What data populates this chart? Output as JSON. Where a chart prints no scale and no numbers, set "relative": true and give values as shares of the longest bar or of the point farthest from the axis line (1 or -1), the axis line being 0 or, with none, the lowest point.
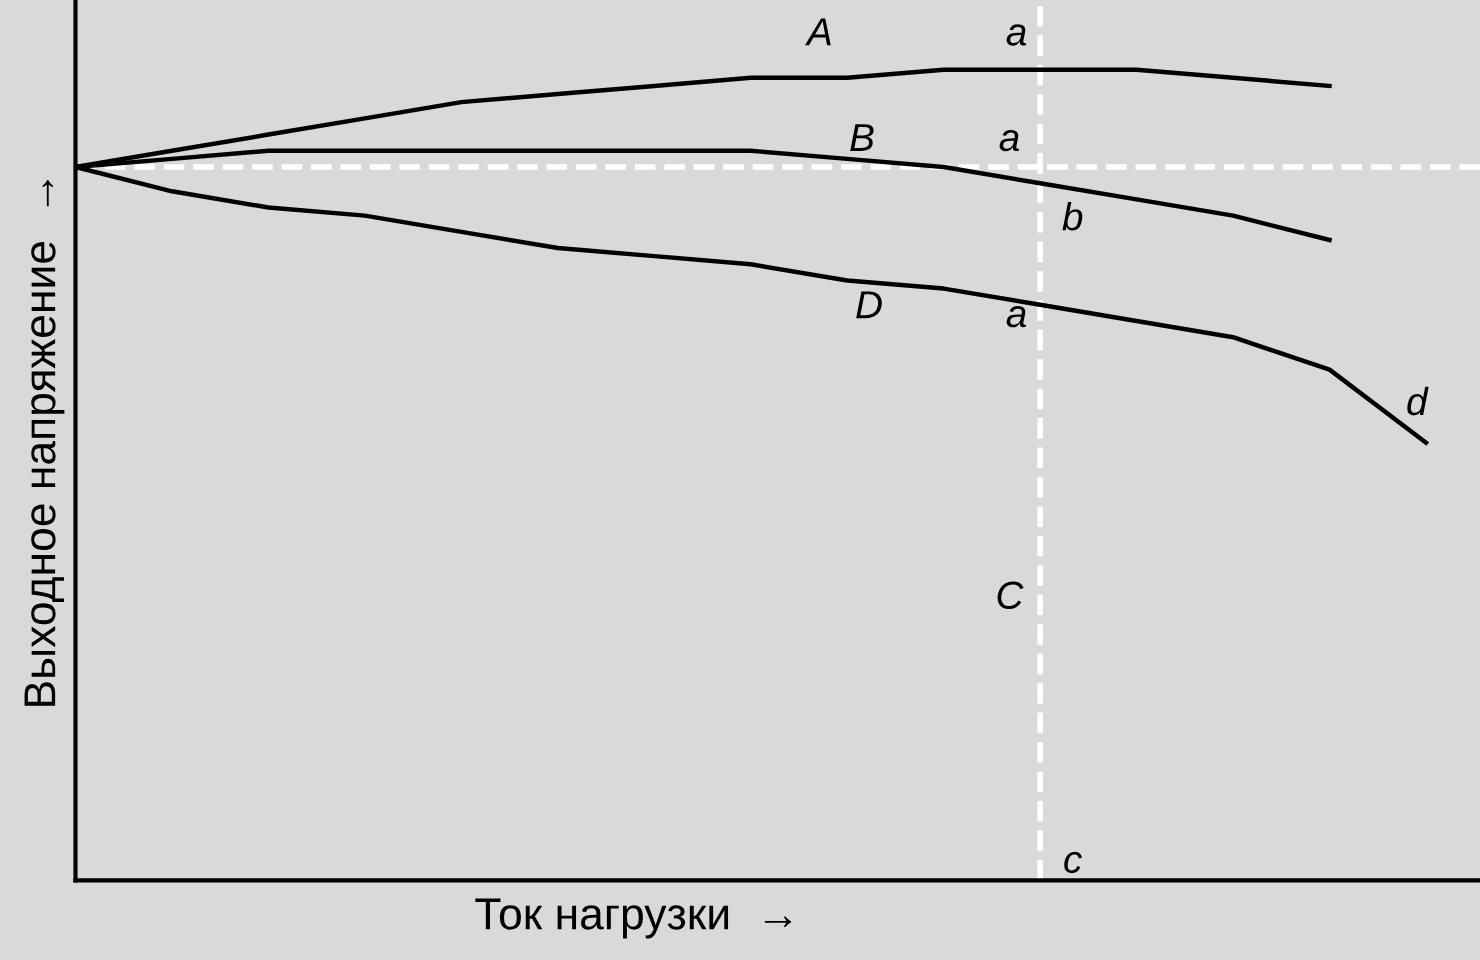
{
  "chart_data": {
    "type": "line",
    "relative": true,
    "xlabel": "Ток нагрузки  →",
    "ylabel": "Выходное напряжение  →",
    "categories": [
      null,
      null,
      null,
      null,
      null,
      null,
      null,
      null,
      null,
      null,
      null,
      null,
      null,
      null,
      null
    ],
    "series": [
      {
        "color": "#000000",
        "values": [
          0.88,
          0.9,
          0.92,
          0.94,
          0.96,
          0.97,
          0.98,
          0.99,
          0.99,
          1.0,
          1.0,
          1.0,
          0.99,
          0.98,
          null
        ]
      },
      {
        "color": "#000000",
        "values": [
          0.88,
          0.89,
          0.9,
          0.9,
          0.9,
          0.9,
          0.9,
          0.9,
          0.89,
          0.88,
          0.86,
          0.84,
          0.82,
          0.79,
          null
        ]
      },
      {
        "color": "#000000",
        "values": [
          0.88,
          0.85,
          0.83,
          0.82,
          0.8,
          0.78,
          0.77,
          0.76,
          0.74,
          0.73,
          0.71,
          0.69,
          0.67,
          0.63,
          0.54
        ]
      }
    ],
    "ref_lines": [
      {
        "axis": "y",
        "value": 0.88,
        "color": "#ffffff",
        "line_style": "dashed"
      }
    ],
    "annotations": [
      "A",
      "a",
      "B",
      "a",
      "b",
      "D",
      "a",
      "C",
      "c",
      "d"
    ],
    "legend": false,
    "marker": "none",
    "line_style": "solid"
  }
}
